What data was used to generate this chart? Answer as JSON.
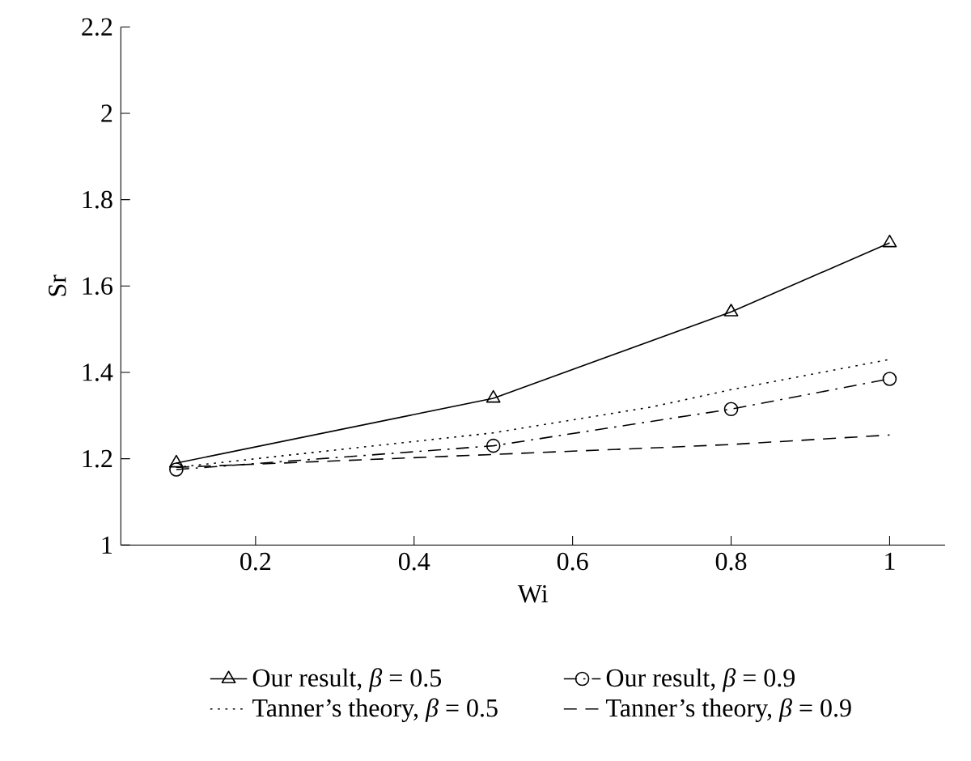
{
  "chart_data": {
    "type": "line",
    "xlabel": "Wi",
    "ylabel": "Sr",
    "xlim": [
      0.03,
      1.07
    ],
    "ylim": [
      1,
      2.2
    ],
    "xticks": [
      0.2,
      0.4,
      0.6,
      0.8,
      1
    ],
    "yticks": [
      1,
      1.2,
      1.4,
      1.6,
      1.8,
      2,
      2.2
    ],
    "grid": false,
    "legend": "bottom",
    "series": [
      {
        "name": "Our result, *β* = 0.5",
        "color": "#000000",
        "marker": "triangle",
        "line_style": "solid",
        "x": [
          0.1,
          0.5,
          0.8,
          1.0
        ],
        "values": [
          1.19,
          1.34,
          1.54,
          1.7
        ]
      },
      {
        "name": "Our result, *β* = 0.9",
        "color": "#000000",
        "marker": "circle",
        "line_style": "dashdot",
        "x": [
          0.1,
          0.5,
          0.8,
          1.0
        ],
        "values": [
          1.175,
          1.23,
          1.315,
          1.385
        ]
      },
      {
        "name": "Tanner’s theory, *β* = 0.5",
        "color": "#000000",
        "marker": "none",
        "line_style": "dotted",
        "x": [
          0.1,
          0.3,
          0.5,
          0.7,
          0.8,
          1.0
        ],
        "values": [
          1.18,
          1.22,
          1.26,
          1.32,
          1.36,
          1.43
        ]
      },
      {
        "name": "Tanner’s theory, *β* = 0.9",
        "color": "#000000",
        "marker": "none",
        "line_style": "dashed",
        "x": [
          0.1,
          0.3,
          0.5,
          0.7,
          0.8,
          1.0
        ],
        "values": [
          1.18,
          1.195,
          1.21,
          1.225,
          1.233,
          1.255
        ]
      }
    ]
  }
}
